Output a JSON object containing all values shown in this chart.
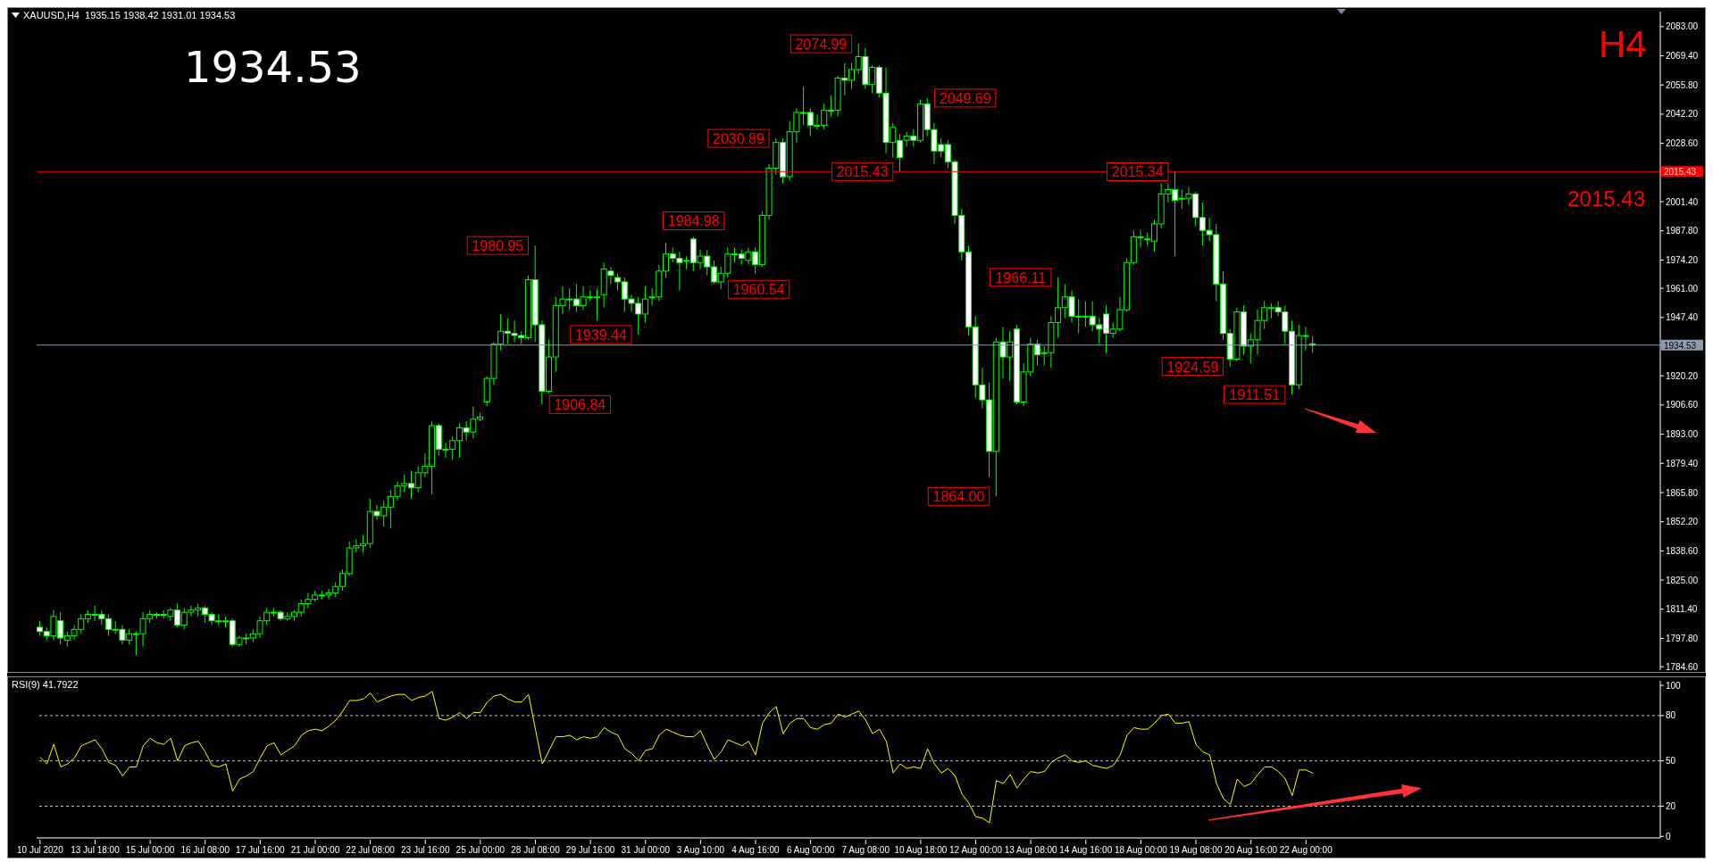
{
  "chart_data": [
    {
      "type": "candlestick",
      "title": "XAUUSD,H4  1935.15 1938.42 1931.01 1934.53",
      "color": "#00ff00",
      "tick_labels": "y",
      "categories": [
        null,
        null,
        null,
        null,
        null,
        null,
        null,
        null,
        null,
        null,
        null,
        null,
        null,
        null,
        null,
        null,
        null,
        null,
        null,
        null,
        null,
        null,
        null,
        null,
        null,
        null,
        null,
        null,
        null,
        null,
        null,
        null,
        null,
        null,
        null,
        null,
        null,
        null,
        null,
        null,
        null,
        null,
        null,
        null,
        null,
        null,
        null,
        null,
        null,
        null,
        null,
        null,
        null,
        null,
        null,
        null,
        null,
        null,
        null,
        null,
        null,
        null,
        null,
        null,
        null,
        null,
        null,
        null,
        null,
        null,
        null,
        null,
        null,
        null,
        null,
        null,
        null,
        null,
        null,
        null,
        null,
        null,
        null,
        null,
        null,
        null,
        null,
        null,
        null,
        null,
        null,
        null,
        null,
        null,
        null,
        null,
        null,
        null,
        null,
        null,
        null,
        null,
        null,
        null,
        null,
        null,
        null,
        null,
        null,
        null,
        null,
        null,
        null,
        null,
        null,
        null,
        null,
        null,
        null,
        null,
        null,
        null,
        null,
        null,
        null,
        null,
        null,
        null,
        null,
        null,
        null,
        null,
        null,
        null,
        null,
        null,
        null,
        null,
        null,
        null,
        null,
        null,
        null,
        null,
        null,
        null,
        null,
        null,
        null,
        null,
        null,
        null,
        null,
        null,
        null,
        null,
        null,
        null,
        null,
        null,
        null,
        null,
        null,
        null,
        null,
        null,
        null,
        null,
        null,
        null,
        null,
        null,
        null,
        null,
        null,
        null,
        null,
        null,
        null,
        null,
        null,
        null,
        null,
        null,
        null,
        null,
        null,
        null,
        null,
        null,
        null,
        null,
        null,
        null,
        null,
        null,
        null,
        null,
        null,
        null,
        null,
        null,
        null,
        null,
        null,
        null,
        null,
        null,
        null,
        null,
        null,
        null,
        null,
        null,
        null,
        null,
        null,
        null,
        null,
        null,
        null,
        null,
        null,
        null,
        null,
        null,
        null,
        null,
        null,
        null,
        null,
        null,
        null,
        null,
        null,
        null
      ],
      "ohlc": [
        [
          1803,
          1806,
          1799,
          1801
        ],
        [
          1801,
          1803,
          1797,
          1799
        ],
        [
          1799,
          1811,
          1797,
          1808
        ],
        [
          1806,
          1810,
          1795,
          1798
        ],
        [
          1797,
          1801,
          1794,
          1799
        ],
        [
          1799,
          1804,
          1797,
          1802
        ],
        [
          1802,
          1809,
          1800,
          1807
        ],
        [
          1807,
          1811,
          1805,
          1809
        ],
        [
          1809,
          1813,
          1806,
          1809
        ],
        [
          1809,
          1811,
          1804,
          1807
        ],
        [
          1807,
          1809,
          1799,
          1802
        ],
        [
          1802,
          1806,
          1800,
          1802
        ],
        [
          1802,
          1804,
          1795,
          1797
        ],
        [
          1797,
          1802,
          1795,
          1800
        ],
        [
          1800,
          1801,
          1790,
          1800
        ],
        [
          1800,
          1810,
          1794,
          1807
        ],
        [
          1807,
          1811,
          1805,
          1809
        ],
        [
          1809,
          1810,
          1807,
          1809
        ],
        [
          1809,
          1811,
          1807,
          1809
        ],
        [
          1808,
          1812,
          1806,
          1811
        ],
        [
          1811,
          1814,
          1803,
          1804
        ],
        [
          1804,
          1812,
          1802,
          1810
        ],
        [
          1810,
          1813,
          1808,
          1811
        ],
        [
          1811,
          1814,
          1808,
          1812
        ],
        [
          1812,
          1813,
          1805,
          1809
        ],
        [
          1809,
          1810,
          1804,
          1806
        ],
        [
          1806,
          1809,
          1804,
          1806
        ],
        [
          1806,
          1808,
          1803,
          1806
        ],
        [
          1806,
          1807,
          1794,
          1795
        ],
        [
          1795,
          1799,
          1794,
          1798
        ],
        [
          1798,
          1800,
          1795,
          1798
        ],
        [
          1798,
          1802,
          1796,
          1800
        ],
        [
          1800,
          1808,
          1798,
          1806
        ],
        [
          1806,
          1812,
          1804,
          1810
        ],
        [
          1810,
          1812,
          1808,
          1810
        ],
        [
          1810,
          1811,
          1806,
          1807
        ],
        [
          1807,
          1810,
          1806,
          1808
        ],
        [
          1808,
          1811,
          1806,
          1810
        ],
        [
          1810,
          1816,
          1808,
          1814
        ],
        [
          1814,
          1819,
          1812,
          1816
        ],
        [
          1816,
          1820,
          1815,
          1818
        ],
        [
          1818,
          1820,
          1816,
          1818
        ],
        [
          1818,
          1821,
          1816,
          1819
        ],
        [
          1819,
          1824,
          1817,
          1822
        ],
        [
          1822,
          1830,
          1820,
          1828
        ],
        [
          1828,
          1843,
          1827,
          1840
        ],
        [
          1840,
          1844,
          1838,
          1841
        ],
        [
          1841,
          1846,
          1838,
          1842
        ],
        [
          1842,
          1863,
          1840,
          1857
        ],
        [
          1857,
          1860,
          1853,
          1855
        ],
        [
          1855,
          1862,
          1850,
          1859
        ],
        [
          1859,
          1867,
          1849,
          1864
        ],
        [
          1864,
          1871,
          1862,
          1869
        ],
        [
          1869,
          1874,
          1866,
          1870
        ],
        [
          1870,
          1876,
          1863,
          1868
        ],
        [
          1868,
          1878,
          1866,
          1875
        ],
        [
          1875,
          1884,
          1873,
          1878
        ],
        [
          1878,
          1899,
          1865,
          1897
        ],
        [
          1897,
          1898,
          1883,
          1886
        ],
        [
          1886,
          1889,
          1882,
          1886
        ],
        [
          1886,
          1892,
          1881,
          1890
        ],
        [
          1890,
          1898,
          1882,
          1896
        ],
        [
          1896,
          1899,
          1890,
          1894
        ],
        [
          1894,
          1906,
          1891,
          1900
        ],
        [
          1900,
          1903,
          1899,
          1901
        ],
        [
          1908,
          1920,
          1906,
          1919
        ],
        [
          1919,
          1936,
          1916,
          1935
        ],
        [
          1935,
          1949,
          1932,
          1941
        ],
        [
          1941,
          1947,
          1935,
          1940
        ],
        [
          1940,
          1946,
          1936,
          1939
        ],
        [
          1939,
          1941,
          1935,
          1938
        ],
        [
          1938,
          1967,
          1937,
          1965
        ],
        [
          1965,
          1980.95,
          1936,
          1944
        ],
        [
          1944,
          1946,
          1906.84,
          1913
        ],
        [
          1913,
          1937,
          1912,
          1929
        ],
        [
          1929,
          1957,
          1922,
          1953
        ],
        [
          1953,
          1962,
          1949,
          1956
        ],
        [
          1956,
          1961,
          1951,
          1956
        ],
        [
          1956,
          1963,
          1950,
          1953
        ],
        [
          1953,
          1962,
          1951,
          1957
        ],
        [
          1957,
          1960,
          1955,
          1957
        ],
        [
          1957,
          1961,
          1946,
          1957
        ],
        [
          1958,
          1973,
          1952,
          1970
        ],
        [
          1969,
          1971,
          1963,
          1967
        ],
        [
          1966,
          1968,
          1960,
          1964
        ],
        [
          1964,
          1966,
          1950,
          1956
        ],
        [
          1956,
          1958,
          1950,
          1954
        ],
        [
          1954,
          1957,
          1939.44,
          1949
        ],
        [
          1949,
          1962,
          1945,
          1956
        ],
        [
          1957,
          1961,
          1953,
          1957
        ],
        [
          1957,
          1972,
          1955,
          1969
        ],
        [
          1969,
          1982,
          1966,
          1977
        ],
        [
          1977,
          1980,
          1973,
          1975
        ],
        [
          1975,
          1978,
          1960,
          1973
        ],
        [
          1974,
          1976,
          1970,
          1974
        ],
        [
          1984,
          1984.98,
          1969,
          1973
        ],
        [
          1973,
          1979,
          1970,
          1976
        ],
        [
          1976,
          1979,
          1967,
          1971
        ],
        [
          1971,
          1974,
          1963,
          1964
        ],
        [
          1964,
          1971,
          1960.54,
          1968
        ],
        [
          1968,
          1980,
          1966,
          1977
        ],
        [
          1977,
          1980,
          1973,
          1977
        ],
        [
          1977,
          1979,
          1972,
          1975
        ],
        [
          1974,
          1980,
          1972,
          1978
        ],
        [
          1978,
          1980,
          1968,
          1972
        ],
        [
          1972,
          1997,
          1971,
          1995
        ],
        [
          1995,
          2019,
          1993,
          2017
        ],
        [
          2017,
          2030.89,
          2014,
          2029
        ],
        [
          2029,
          2031,
          2010,
          2013
        ],
        [
          2013,
          2039,
          2011,
          2034
        ],
        [
          2034,
          2045,
          2029,
          2043
        ],
        [
          2043,
          2055,
          2037,
          2043
        ],
        [
          2043,
          2045,
          2032,
          2037
        ],
        [
          2037,
          2042,
          2035,
          2037
        ],
        [
          2037,
          2047,
          2035,
          2044
        ],
        [
          2044,
          2051,
          2041,
          2044
        ],
        [
          2044,
          2060,
          2041,
          2059
        ],
        [
          2059,
          2066,
          2051,
          2058
        ],
        [
          2058,
          2066,
          2054,
          2063
        ],
        [
          2063,
          2074.99,
          2061,
          2069
        ],
        [
          2069,
          2073,
          2054,
          2056
        ],
        [
          2056,
          2065,
          2052,
          2064
        ],
        [
          2064,
          2065,
          2050,
          2052
        ],
        [
          2052,
          2064,
          2024,
          2029
        ],
        [
          2029,
          2038,
          2022,
          2036
        ],
        [
          2030,
          2033,
          2015.43,
          2022
        ],
        [
          2030,
          2034,
          2027,
          2032
        ],
        [
          2032,
          2035,
          2027,
          2030
        ],
        [
          2030,
          2049,
          2029,
          2047
        ],
        [
          2047,
          2049.69,
          2032,
          2035
        ],
        [
          2035,
          2038,
          2019,
          2025
        ],
        [
          2028,
          2031,
          2022,
          2025
        ],
        [
          2028,
          2030,
          2017,
          2020
        ],
        [
          2020,
          2021,
          1991,
          1995
        ],
        [
          1995,
          1998,
          1974,
          1978
        ],
        [
          1978,
          1981,
          1939,
          1943
        ],
        [
          1943,
          1948,
          1910,
          1916
        ],
        [
          1916,
          1924,
          1905,
          1909
        ],
        [
          1909,
          1917,
          1873,
          1885
        ],
        [
          1885,
          1938,
          1864,
          1936
        ],
        [
          1936,
          1943,
          1919,
          1929
        ],
        [
          1929,
          1941,
          1918,
          1936
        ],
        [
          1942,
          1944,
          1907,
          1908
        ],
        [
          1908,
          1926,
          1906,
          1922
        ],
        [
          1922,
          1938,
          1920,
          1935
        ],
        [
          1935,
          1937,
          1925,
          1930
        ],
        [
          1931,
          1934,
          1925,
          1931
        ],
        [
          1931,
          1948,
          1924,
          1945
        ],
        [
          1945,
          1966.11,
          1938,
          1952
        ],
        [
          1952,
          1963,
          1947,
          1957
        ],
        [
          1957,
          1960,
          1945,
          1948
        ],
        [
          1948,
          1956,
          1940,
          1948
        ],
        [
          1948,
          1955,
          1943,
          1948
        ],
        [
          1948,
          1955,
          1941,
          1944
        ],
        [
          1944,
          1947,
          1935,
          1942
        ],
        [
          1949,
          1953,
          1931,
          1940
        ],
        [
          1940,
          1945,
          1938,
          1942
        ],
        [
          1942,
          1957,
          1941,
          1951
        ],
        [
          1951,
          1975,
          1950,
          1973
        ],
        [
          1973,
          1988,
          1972,
          1985
        ],
        [
          1985,
          1988,
          1980,
          1985
        ],
        [
          1984,
          1987,
          1981,
          1984
        ],
        [
          1983,
          1993,
          1978,
          1991
        ],
        [
          1991,
          2010,
          1989,
          2005
        ],
        [
          2005,
          2010,
          2001,
          2007
        ],
        [
          2007,
          2015.34,
          1976,
          2002
        ],
        [
          2003,
          2007,
          1998,
          2003
        ],
        [
          2003,
          2008,
          2000,
          2005
        ],
        [
          2005,
          2006,
          1990,
          1994
        ],
        [
          1994,
          2001,
          1981,
          1988
        ],
        [
          1988,
          1994,
          1983,
          1986
        ],
        [
          1986,
          1991,
          1955,
          1963
        ],
        [
          1963,
          1969,
          1937,
          1940
        ],
        [
          1940,
          1942,
          1924.59,
          1928
        ],
        [
          1928,
          1952,
          1927,
          1950
        ],
        [
          1950,
          1953,
          1930,
          1934
        ],
        [
          1934,
          1940,
          1926,
          1937
        ],
        [
          1937,
          1951,
          1930,
          1946
        ],
        [
          1946,
          1955,
          1942,
          1952
        ],
        [
          1952,
          1954,
          1947,
          1952
        ],
        [
          1952,
          1955,
          1948,
          1950
        ],
        [
          1950,
          1953,
          1935,
          1941
        ],
        [
          1941,
          1946,
          1911.51,
          1916
        ],
        [
          1916,
          1944,
          1914,
          1939
        ],
        [
          1939,
          1943,
          1932,
          1939
        ],
        [
          1935.15,
          1938.42,
          1931.01,
          1934.53
        ],
        null,
        null,
        null,
        null,
        null,
        null,
        null,
        null,
        null,
        null,
        null,
        null,
        null,
        null,
        null,
        null,
        null,
        null,
        null,
        null,
        null,
        null,
        null,
        null,
        null,
        null,
        null,
        null,
        null,
        null,
        null,
        null,
        null,
        null,
        null,
        null,
        null,
        null,
        null,
        null,
        null,
        null,
        null,
        null,
        null,
        null,
        null,
        null,
        null,
        null
      ],
      "ylim": [
        1783,
        2090
      ],
      "yticks": [
        {
          "value": 2083,
          "label": "2083.00"
        },
        {
          "value": 2069.4,
          "label": "2069.40"
        },
        {
          "value": 2055.8,
          "label": "2055.80"
        },
        {
          "value": 2042.2,
          "label": "2042.20"
        },
        {
          "value": 2028.6,
          "label": "2028.60"
        },
        {
          "value": 2001.4,
          "label": "2001.40"
        },
        {
          "value": 1987.8,
          "label": "1987.80"
        },
        {
          "value": 1974.2,
          "label": "1974.20"
        },
        {
          "value": 1961,
          "label": "1961.00"
        },
        {
          "value": 1947.4,
          "label": "1947.40"
        },
        {
          "value": 1920.2,
          "label": "1920.20"
        },
        {
          "value": 1906.6,
          "label": "1906.60"
        },
        {
          "value": 1893,
          "label": "1893.00"
        },
        {
          "value": 1879.4,
          "label": "1879.40"
        },
        {
          "value": 1865.8,
          "label": "1865.80"
        },
        {
          "value": 1852.2,
          "label": "1852.20"
        },
        {
          "value": 1838.6,
          "label": "1838.60"
        },
        {
          "value": 1825,
          "label": "1825.00"
        },
        {
          "value": 1811.4,
          "label": "1811.40"
        },
        {
          "value": 1797.8,
          "label": "1797.80"
        },
        {
          "value": 1784.6,
          "label": "1784.60"
        }
      ],
      "ref_lines": [
        {
          "axis": "y",
          "value": 2015.43,
          "label": "2015.43",
          "color": "#ff0000"
        },
        {
          "axis": "y",
          "value": 1934.53,
          "color": "#8c9cb0"
        }
      ],
      "annotations": [
        "1934.53",
        "H4",
        "2074.99",
        "2049.69",
        "2030.89",
        "2015.43",
        "1984.98",
        "1980.95",
        "1960.54",
        "1939.44",
        "1906.84",
        "1864.00",
        "1966.11",
        "2015.34",
        "1924.59",
        "1911.51"
      ]
    },
    {
      "type": "line",
      "title": "RSI(9) 41.7922",
      "color": "#ffff00",
      "categories": [
        "10 Jul 2020",
        null,
        null,
        null,
        null,
        null,
        null,
        null,
        "13 Jul 18:00",
        null,
        null,
        null,
        null,
        null,
        null,
        null,
        "15 Jul 00:00",
        null,
        null,
        null,
        null,
        null,
        null,
        null,
        "16 Jul 08:00",
        null,
        null,
        null,
        null,
        null,
        null,
        null,
        "17 Jul 16:00",
        null,
        null,
        null,
        null,
        null,
        null,
        null,
        "21 Jul 00:00",
        null,
        null,
        null,
        null,
        null,
        null,
        null,
        "22 Jul 08:00",
        null,
        null,
        null,
        null,
        null,
        null,
        null,
        "23 Jul 16:00",
        null,
        null,
        null,
        null,
        null,
        null,
        null,
        "25 Jul 00:00",
        null,
        null,
        null,
        null,
        null,
        null,
        null,
        "28 Jul 08:00",
        null,
        null,
        null,
        null,
        null,
        null,
        null,
        "29 Jul 16:00",
        null,
        null,
        null,
        null,
        null,
        null,
        null,
        "31 Jul 00:00",
        null,
        null,
        null,
        null,
        null,
        null,
        null,
        "3 Aug 10:00",
        null,
        null,
        null,
        null,
        null,
        null,
        null,
        "4 Aug 16:00",
        null,
        null,
        null,
        null,
        null,
        null,
        null,
        "6 Aug 00:00",
        null,
        null,
        null,
        null,
        null,
        null,
        null,
        "7 Aug 08:00",
        null,
        null,
        null,
        null,
        null,
        null,
        null,
        "10 Aug 18:00",
        null,
        null,
        null,
        null,
        null,
        null,
        null,
        "12 Aug 00:00",
        null,
        null,
        null,
        null,
        null,
        null,
        null,
        "13 Aug 08:00",
        null,
        null,
        null,
        null,
        null,
        null,
        null,
        "14 Aug 16:00",
        null,
        null,
        null,
        null,
        null,
        null,
        null,
        "18 Aug 00:00",
        null,
        null,
        null,
        null,
        null,
        null,
        null,
        "19 Aug 08:00",
        null,
        null,
        null,
        null,
        null,
        null,
        null,
        "20 Aug 16:00",
        null,
        null,
        null,
        null,
        null,
        null,
        null,
        "22 Aug 00:00",
        null,
        null,
        null,
        null,
        null,
        null,
        null,
        null,
        null,
        null,
        null,
        null,
        null,
        null,
        null,
        null,
        null,
        null,
        null,
        null,
        null,
        null,
        null,
        null,
        null,
        null,
        null,
        null,
        null,
        null,
        null,
        null,
        null,
        null,
        null,
        null,
        null,
        null,
        null,
        null,
        null,
        null,
        null,
        null,
        null,
        null,
        null,
        null,
        null,
        null,
        null
      ],
      "values": [
        52.5,
        48,
        61,
        46,
        48,
        52,
        60,
        62,
        64,
        58,
        49,
        47,
        40,
        46,
        46,
        60,
        65,
        62,
        61,
        65,
        50,
        60,
        62,
        63,
        56,
        47,
        46,
        48,
        30,
        38,
        40,
        43,
        52,
        60,
        62,
        54,
        57,
        60,
        67,
        70,
        71,
        70,
        73,
        77,
        83,
        90,
        90,
        91,
        95,
        89,
        91,
        93,
        94,
        94,
        90,
        92,
        93,
        96,
        78,
        77,
        79,
        82,
        78,
        82,
        82,
        89,
        93,
        94,
        91,
        89,
        89,
        94,
        71,
        48,
        57,
        66,
        66,
        67,
        64,
        66,
        65,
        66,
        72,
        69,
        67,
        58,
        55,
        50,
        57,
        58,
        67,
        71,
        69,
        67,
        66,
        66,
        70,
        60,
        51,
        56,
        64,
        62,
        60,
        63,
        54,
        75,
        82,
        86,
        68,
        75,
        78,
        78,
        72,
        71,
        74,
        75,
        81,
        79,
        81,
        83,
        77,
        68,
        71,
        63,
        42,
        48,
        45,
        46,
        45,
        58,
        48,
        42,
        45,
        40,
        28,
        22,
        13,
        12,
        9,
        37,
        35,
        41,
        32,
        38,
        43,
        42,
        43,
        49,
        52,
        54,
        50,
        49,
        50,
        47,
        46,
        45,
        47,
        54,
        67,
        72,
        71,
        71,
        75,
        80,
        81,
        75,
        75,
        76,
        61,
        56,
        54,
        35,
        25,
        21,
        38,
        33,
        35,
        41,
        46,
        46,
        43,
        38,
        27,
        44,
        44,
        41.7922,
        null,
        null,
        null,
        null,
        null,
        null,
        null,
        null,
        null,
        null,
        null,
        null,
        null,
        null,
        null,
        null,
        null,
        null,
        null,
        null,
        null,
        null,
        null,
        null,
        null,
        null,
        null,
        null,
        null,
        null,
        null,
        null,
        null,
        null,
        null,
        null,
        null,
        null,
        null,
        null,
        null,
        null,
        null,
        null,
        null,
        null,
        null,
        null,
        null,
        null
      ],
      "ylim": [
        -1,
        103
      ],
      "yticks": [
        0,
        20,
        50,
        80,
        100
      ],
      "ref_lines": [
        {
          "axis": "y",
          "value": 80,
          "color": "#c8c8c8",
          "line_style": "dashed"
        },
        {
          "axis": "y",
          "value": 50,
          "color": "#c8c8c8",
          "line_style": "dashed"
        },
        {
          "axis": "y",
          "value": 20,
          "color": "#c8c8c8",
          "line_style": "dashed"
        }
      ]
    }
  ]
}
